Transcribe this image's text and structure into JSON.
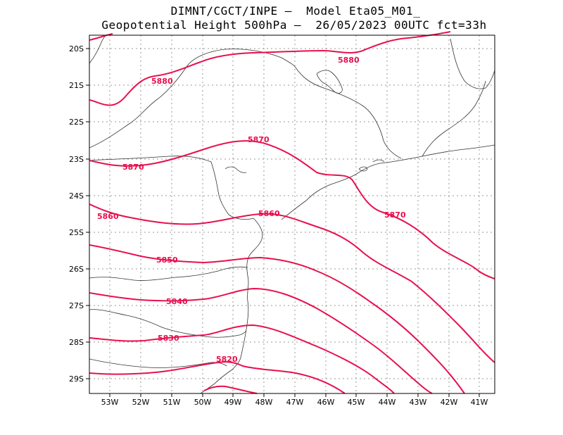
{
  "header": {
    "line1": "DIMNT/CGCT/INPE –  Model Eta05_M01_",
    "line2": "Geopotential Height 500hPa –  26/05/2023 00UTC fct=33h"
  },
  "colors": {
    "contour": "#e8104f",
    "coast": "#333333",
    "grid": "#999999"
  },
  "axes": {
    "lat_labels": [
      "20S",
      "21S",
      "22S",
      "23S",
      "24S",
      "25S",
      "26S",
      "27S",
      "28S",
      "29S"
    ],
    "lon_labels": [
      "53W",
      "52W",
      "51W",
      "50W",
      "49W",
      "48W",
      "47W",
      "46W",
      "45W",
      "44W",
      "43W",
      "42W",
      "41W"
    ]
  },
  "contours": [
    {
      "label": "5880",
      "name": "contour-5880"
    },
    {
      "label": "5880",
      "name": "contour-5880-b"
    },
    {
      "label": "5870",
      "name": "contour-5870"
    },
    {
      "label": "5870",
      "name": "contour-5870-b"
    },
    {
      "label": "5860",
      "name": "contour-5860"
    },
    {
      "label": "5860",
      "name": "contour-5860-b"
    },
    {
      "label": "5850",
      "name": "contour-5850"
    },
    {
      "label": "5840",
      "name": "contour-5840"
    },
    {
      "label": "5830",
      "name": "contour-5830"
    },
    {
      "label": "5820",
      "name": "contour-5820"
    }
  ]
}
